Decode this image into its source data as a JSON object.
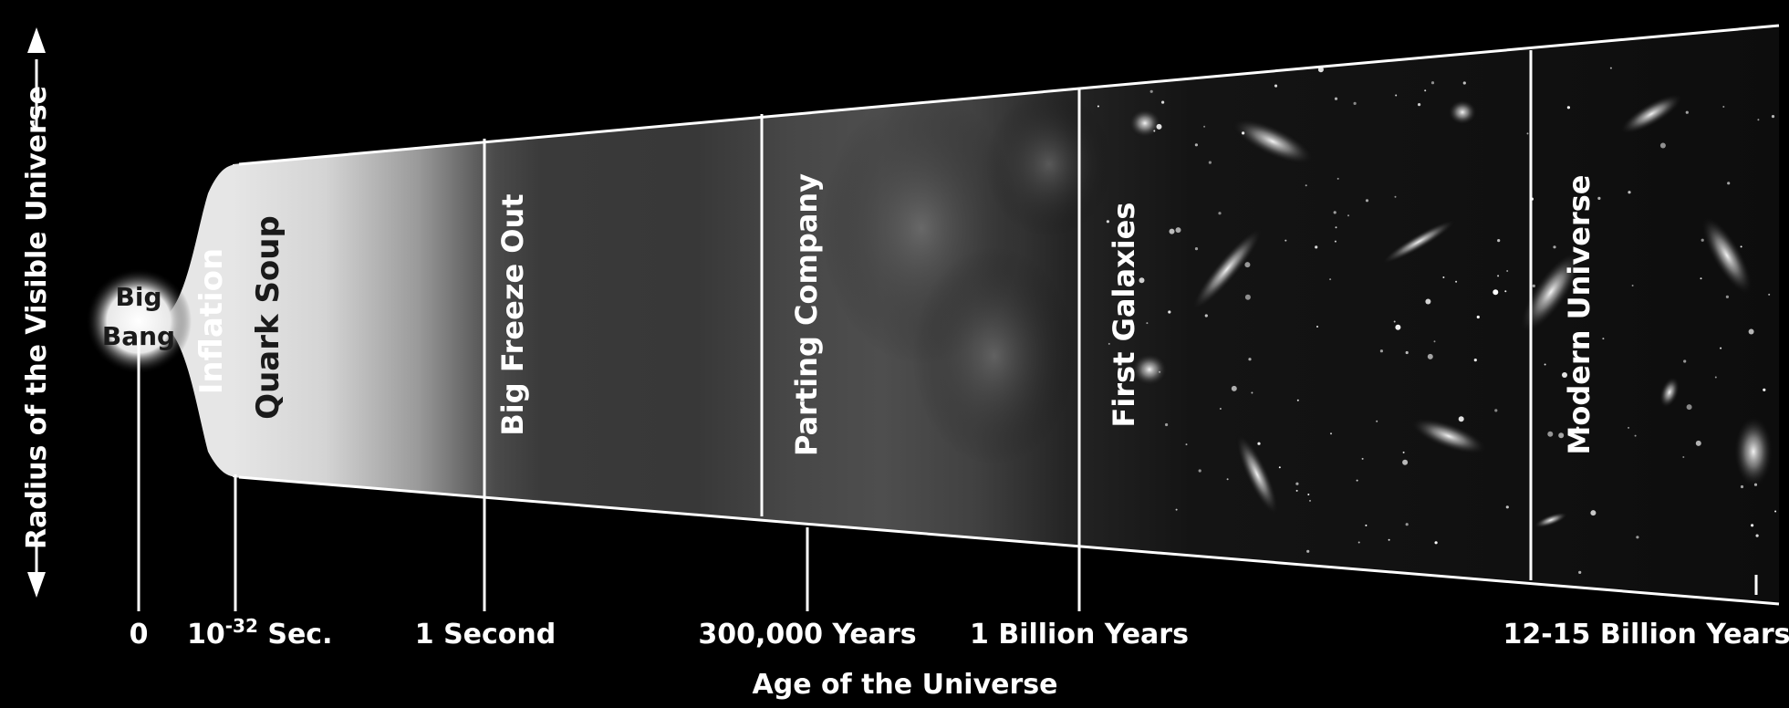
{
  "diagram": {
    "y_axis_label": "Radius of the Visible Universe",
    "x_axis_label": "Age of the Universe",
    "eras": [
      {
        "name": "Big Bang",
        "line1": "Big",
        "line2": "Bang"
      },
      {
        "name": "Inflation"
      },
      {
        "name": "Quark Soup"
      },
      {
        "name": "Big Freeze Out"
      },
      {
        "name": "Parting Company"
      },
      {
        "name": "First Galaxies"
      },
      {
        "name": "Modern Universe"
      }
    ],
    "time_marks": [
      {
        "label": "0"
      },
      {
        "label_base": "10",
        "label_exp": "-32",
        "label_suffix": " Sec."
      },
      {
        "label": "1 Second"
      },
      {
        "label": "300,000 Years"
      },
      {
        "label": "1 Billion Years"
      },
      {
        "label": "12-15 Billion Years"
      }
    ]
  }
}
